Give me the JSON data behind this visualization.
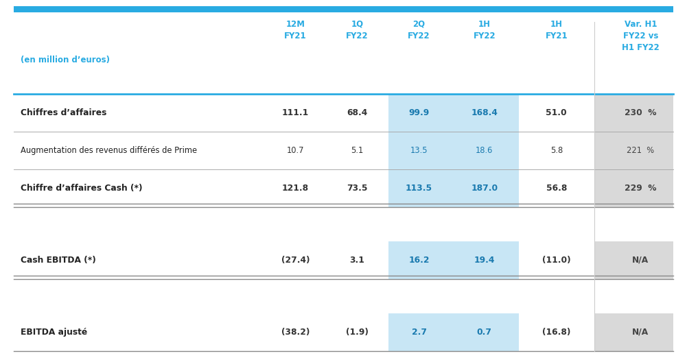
{
  "top_bar_color": "#29ABE2",
  "header_text_color": "#29ABE2",
  "label_color": "#29ABE2",
  "light_blue_bg": "#C8E6F5",
  "light_gray_bg": "#D9D9D9",
  "white_bg": "#FFFFFF",
  "divider_color": "#29ABE2",
  "thin_line_color": "#AAAAAA",
  "headers": [
    "12M\nFY21",
    "1Q\nFY22",
    "2Q\nFY22",
    "1H\nFY22",
    "1H\nFY21",
    "Var. H1\nFY22 vs\nH1 FY22"
  ],
  "col_label": "(en million d’euros)",
  "rows": [
    {
      "label": "Chiffres d’affaires",
      "bold": true,
      "values": [
        "111.1",
        "68.4",
        "99.9",
        "168.4",
        "51.0",
        "230  %"
      ]
    },
    {
      "label": "Augmentation des revenus différés de Prime",
      "bold": false,
      "values": [
        "10.7",
        "5.1",
        "13.5",
        "18.6",
        "5.8",
        "221  %"
      ]
    },
    {
      "label": "Chiffre d’affaires Cash (*)",
      "bold": true,
      "values": [
        "121.8",
        "73.5",
        "113.5",
        "187.0",
        "56.8",
        "229  %"
      ]
    },
    {
      "label": "Cash EBITDA (*)",
      "bold": true,
      "values": [
        "(27.4)",
        "3.1",
        "16.2",
        "19.4",
        "(11.0)",
        "N/A"
      ]
    },
    {
      "label": "EBITDA ajusté",
      "bold": true,
      "values": [
        "(38.2)",
        "(1.9)",
        "2.7",
        "0.7",
        "(16.8)",
        "N/A"
      ]
    }
  ]
}
